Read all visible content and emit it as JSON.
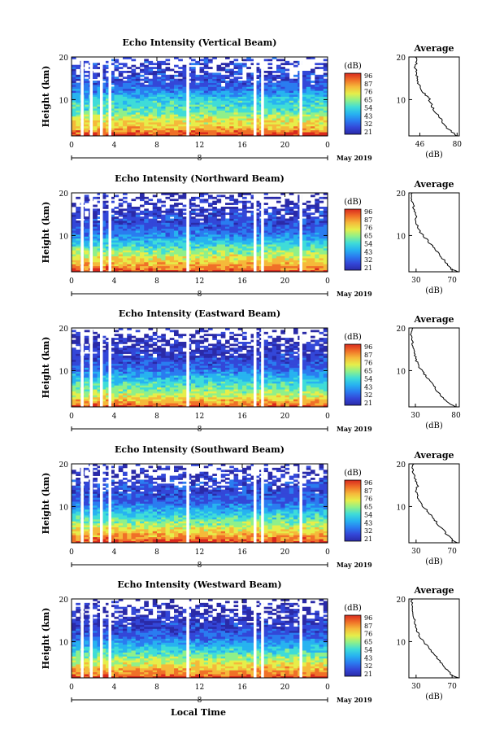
{
  "colorbar_ticks": [
    "96",
    "87",
    "76",
    "65",
    "54",
    "43",
    "32",
    "21"
  ],
  "colorbar_unit": "(dB)",
  "colormap": [
    "#2a2aa8",
    "#3347d8",
    "#2a7cf0",
    "#27b3f0",
    "#3fdcd8",
    "#8ff08a",
    "#e6ee4a",
    "#f5b93a",
    "#f07028",
    "#d92a1e"
  ],
  "x_ticks": [
    "0",
    "4",
    "8",
    "12",
    "16",
    "20",
    "0"
  ],
  "date_tick": "8",
  "month_label": "May 2019",
  "x_axis_title": "Local Time",
  "y_axis_title": "Height (km)",
  "y_ticks": [
    "20",
    "10"
  ],
  "avg_title": "Average",
  "avg_xlabel": "(dB)",
  "chart_data": [
    {
      "type": "heatmap",
      "title": "Echo Intensity (Vertical Beam)",
      "xlabel": "Local Time",
      "ylabel": "Height (km)",
      "xlim": [
        0,
        24
      ],
      "ylim": [
        1.5,
        20
      ],
      "zlim": [
        21,
        96
      ],
      "zlabel": "(dB)",
      "profile": {
        "x_ticks": [
          "46",
          "80"
        ],
        "xlim": [
          36,
          82
        ],
        "ylim": [
          1.5,
          20
        ],
        "xlabel": "(dB)",
        "height_km": [
          1.5,
          2,
          3,
          4,
          5,
          6,
          7,
          8,
          9,
          10,
          11,
          12,
          13,
          14,
          15,
          16,
          17,
          18,
          19,
          20
        ],
        "avg_db": [
          80,
          78,
          72,
          68,
          67,
          64,
          60,
          58,
          56,
          55,
          52,
          48,
          46,
          44,
          43,
          43,
          42,
          42,
          43,
          42
        ]
      }
    },
    {
      "type": "heatmap",
      "title": "Echo Intensity (Northward Beam)",
      "xlabel": "Local Time",
      "ylabel": "Height (km)",
      "xlim": [
        0,
        24
      ],
      "ylim": [
        1.5,
        20
      ],
      "zlim": [
        21,
        96
      ],
      "zlabel": "(dB)",
      "profile": {
        "x_ticks": [
          "30",
          "70"
        ],
        "xlim": [
          22,
          78
        ],
        "ylim": [
          1.5,
          20
        ],
        "xlabel": "(dB)",
        "height_km": [
          1.5,
          2,
          3,
          4,
          5,
          6,
          7,
          8,
          9,
          10,
          11,
          12,
          13,
          14,
          15,
          16,
          17,
          18,
          19,
          20
        ],
        "avg_db": [
          76,
          70,
          66,
          62,
          58,
          54,
          50,
          46,
          42,
          38,
          34,
          32,
          30,
          30,
          29,
          28,
          27,
          26,
          25,
          26
        ]
      }
    },
    {
      "type": "heatmap",
      "title": "Echo Intensity (Eastward Beam)",
      "xlabel": "Local Time",
      "ylabel": "Height (km)",
      "xlim": [
        0,
        24
      ],
      "ylim": [
        1.5,
        20
      ],
      "zlim": [
        21,
        96
      ],
      "zlabel": "(dB)",
      "profile": {
        "x_ticks": [
          "30",
          "80"
        ],
        "xlim": [
          22,
          84
        ],
        "ylim": [
          1.5,
          20
        ],
        "xlabel": "(dB)",
        "height_km": [
          1.5,
          2,
          3,
          4,
          5,
          6,
          7,
          8,
          9,
          10,
          11,
          12,
          13,
          14,
          15,
          16,
          17,
          18,
          19,
          20
        ],
        "avg_db": [
          80,
          74,
          68,
          62,
          58,
          54,
          50,
          46,
          42,
          38,
          34,
          32,
          30,
          29,
          28,
          27,
          26,
          25,
          25,
          26
        ]
      }
    },
    {
      "type": "heatmap",
      "title": "Echo Intensity (Southward Beam)",
      "xlabel": "Local Time",
      "ylabel": "Height (km)",
      "xlim": [
        0,
        24
      ],
      "ylim": [
        1.5,
        20
      ],
      "zlim": [
        21,
        96
      ],
      "zlabel": "(dB)",
      "profile": {
        "x_ticks": [
          "30",
          "70"
        ],
        "xlim": [
          22,
          78
        ],
        "ylim": [
          1.5,
          20
        ],
        "xlabel": "(dB)",
        "height_km": [
          1.5,
          2,
          3,
          4,
          5,
          6,
          7,
          8,
          9,
          10,
          11,
          12,
          13,
          14,
          15,
          16,
          17,
          18,
          19,
          20
        ],
        "avg_db": [
          76,
          72,
          66,
          62,
          58,
          54,
          50,
          46,
          42,
          38,
          34,
          32,
          31,
          30,
          32,
          30,
          28,
          27,
          26,
          27
        ]
      }
    },
    {
      "type": "heatmap",
      "title": "Echo Intensity (Westward Beam)",
      "xlabel": "Local Time",
      "ylabel": "Height (km)",
      "xlim": [
        0,
        24
      ],
      "ylim": [
        1.5,
        20
      ],
      "zlim": [
        21,
        96
      ],
      "zlabel": "(dB)",
      "profile": {
        "x_ticks": [
          "30",
          "70"
        ],
        "xlim": [
          22,
          78
        ],
        "ylim": [
          1.5,
          20
        ],
        "xlabel": "(dB)",
        "height_km": [
          1.5,
          2,
          3,
          4,
          5,
          6,
          7,
          8,
          9,
          10,
          11,
          12,
          13,
          14,
          15,
          16,
          17,
          18,
          19,
          20
        ],
        "avg_db": [
          76,
          70,
          66,
          62,
          58,
          54,
          50,
          46,
          42,
          38,
          34,
          32,
          30,
          29,
          28,
          27,
          26,
          26,
          25,
          26
        ]
      }
    }
  ]
}
